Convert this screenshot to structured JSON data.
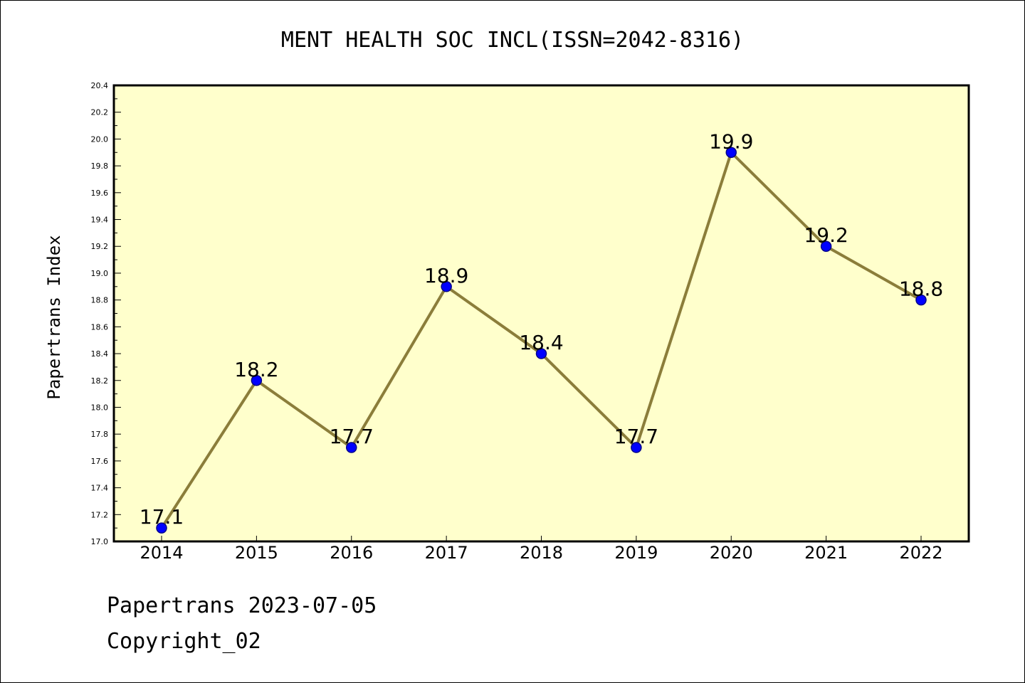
{
  "chart_data": {
    "type": "line",
    "title": "MENT HEALTH SOC INCL(ISSN=2042-8316)",
    "xlabel": "",
    "ylabel": "Papertrans Index",
    "categories": [
      "2014",
      "2015",
      "2016",
      "2017",
      "2018",
      "2019",
      "2020",
      "2021",
      "2022"
    ],
    "values": [
      17.1,
      18.2,
      17.7,
      18.9,
      18.4,
      17.7,
      19.9,
      19.2,
      18.8
    ],
    "data_labels": [
      "17.1",
      "18.2",
      "17.7",
      "18.9",
      "18.4",
      "17.7",
      "19.9",
      "19.2",
      "18.8"
    ],
    "ylim": [
      17.0,
      20.4
    ],
    "yticks": [
      "17.0",
      "17.2",
      "17.4",
      "17.6",
      "17.8",
      "18.0",
      "18.2",
      "18.4",
      "18.6",
      "18.8",
      "19.0",
      "19.2",
      "19.4",
      "19.6",
      "19.8",
      "20.0",
      "20.2",
      "20.4"
    ],
    "grid": false,
    "legend": "none",
    "colors": {
      "plot_background": "#ffffcc",
      "line": "#8b7d3a",
      "marker": "#0000ff",
      "marker_edge": "#00008b"
    }
  },
  "footer": {
    "line1": "Papertrans 2023-07-05",
    "line2": "Copyright_02"
  }
}
